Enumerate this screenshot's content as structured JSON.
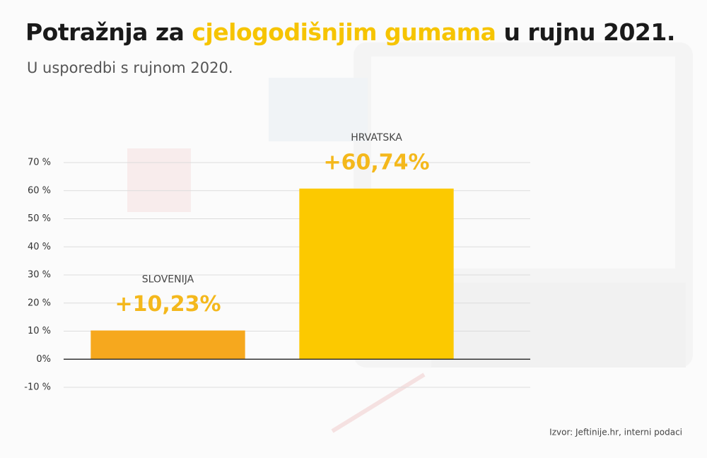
{
  "chart_data": {
    "type": "bar",
    "title_parts": [
      {
        "text": "Potražnja za",
        "color": "#1a1a1a"
      },
      {
        "text": "cjelogodišnjim gumama",
        "color": "#f6c400"
      },
      {
        "text": "u rujnu 2021.",
        "color": "#1a1a1a"
      }
    ],
    "subtitle": "U usporedbi s rujnom 2020.",
    "categories": [
      "SLOVENIJA",
      "HRVATSKA"
    ],
    "values": [
      10.23,
      60.74
    ],
    "value_labels": [
      "+10,23%",
      "+60,74%"
    ],
    "colors": [
      "#f6a81e",
      "#fcc900"
    ],
    "label_color": "#f4b81c",
    "ylim": [
      -10,
      70
    ],
    "yticks": [
      {
        "value": -10,
        "label": "-10 %"
      },
      {
        "value": 0,
        "label": "0%"
      },
      {
        "value": 10,
        "label": "10 %"
      },
      {
        "value": 20,
        "label": "20 %"
      },
      {
        "value": 30,
        "label": "30 %"
      },
      {
        "value": 40,
        "label": "40 %"
      },
      {
        "value": 50,
        "label": "50 %"
      },
      {
        "value": 60,
        "label": "60 %"
      },
      {
        "value": 70,
        "label": "70 %"
      }
    ],
    "grid": true,
    "source": "Izvor: Jeftinije.hr, interni podaci"
  }
}
